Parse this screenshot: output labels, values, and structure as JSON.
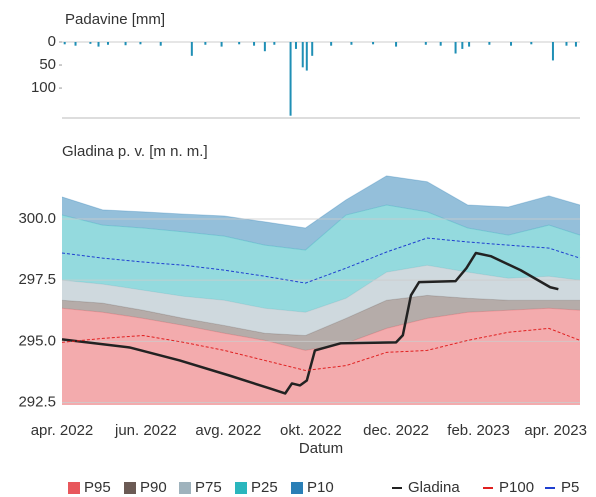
{
  "chart_data": [
    {
      "type": "bar",
      "title": "Padavine [mm]",
      "color": "#1f8fb5",
      "y_inverted": true,
      "grid": false,
      "xlim": [
        0,
        383
      ],
      "ylim": [
        0,
        165
      ],
      "yticks": [
        0,
        50,
        100
      ],
      "x": [
        2,
        10,
        21,
        27,
        34,
        47,
        58,
        73,
        96,
        106,
        118,
        131,
        142,
        150,
        157,
        169,
        173,
        178,
        181,
        185,
        199,
        214,
        230,
        247,
        269,
        280,
        291,
        296,
        301,
        316,
        332,
        347,
        363,
        373,
        380
      ],
      "values": [
        5,
        8,
        4,
        10,
        6,
        7,
        5,
        8,
        30,
        6,
        10,
        5,
        8,
        20,
        6,
        160,
        15,
        55,
        62,
        30,
        8,
        6,
        5,
        10,
        6,
        8,
        25,
        15,
        10,
        6,
        8,
        5,
        40,
        8,
        10
      ]
    },
    {
      "type": "area",
      "title": "Gladina p. v. [m n. m.]",
      "x_label": "Datum",
      "grid": true,
      "xlim": [
        0,
        383
      ],
      "ylim": [
        292.4,
        302
      ],
      "yticks": [
        {
          "value": 292.5,
          "label": "292.5"
        },
        {
          "value": 295,
          "label": "295.0"
        },
        297.5,
        {
          "value": 300,
          "label": "300.0"
        }
      ],
      "xticks": [
        {
          "value": 0,
          "label": "apr. 2022"
        },
        {
          "value": 62,
          "label": "jun. 2022"
        },
        {
          "value": 123,
          "label": "avg. 2022"
        },
        {
          "value": 184,
          "label": "okt. 2022"
        },
        {
          "value": 247,
          "label": "dec. 2022"
        },
        {
          "value": 308,
          "label": "feb. 2023"
        },
        {
          "value": 365,
          "label": "apr. 2023"
        }
      ],
      "x": [
        0,
        30,
        60,
        90,
        120,
        150,
        180,
        210,
        240,
        270,
        300,
        330,
        360,
        383
      ],
      "series": [
        {
          "name": "P95",
          "color": "#e8575c",
          "style": "band",
          "values": [
            296.35,
            296.19,
            295.94,
            295.65,
            295.33,
            295.04,
            294.63,
            294.92,
            295.53,
            295.94,
            296.19,
            296.27,
            296.35,
            296.27
          ]
        },
        {
          "name": "P90",
          "color": "#6b5a54",
          "style": "band",
          "values": [
            296.68,
            296.56,
            296.27,
            295.94,
            295.65,
            295.33,
            295.24,
            295.94,
            296.68,
            296.88,
            296.76,
            296.68,
            296.68,
            296.68
          ]
        },
        {
          "name": "P75",
          "color": "#9fb3bd",
          "style": "band",
          "values": [
            297.5,
            297.34,
            297.09,
            296.84,
            296.68,
            296.35,
            296.19,
            296.76,
            297.83,
            298.11,
            297.83,
            297.58,
            297.66,
            297.5
          ]
        },
        {
          "name": "P25",
          "color": "#2ab6bd",
          "style": "band",
          "values": [
            300.16,
            299.75,
            299.63,
            299.47,
            299.3,
            298.93,
            298.73,
            300.16,
            300.57,
            300.29,
            299.63,
            299.34,
            299.75,
            299.34
          ]
        },
        {
          "name": "P10",
          "color": "#2a7fb6",
          "style": "band",
          "values": [
            300.9,
            300.37,
            300.29,
            300.2,
            300.12,
            299.88,
            299.63,
            300.78,
            301.76,
            301.52,
            300.57,
            300.49,
            300.94,
            300.57
          ]
        },
        {
          "name": "Gladina",
          "color": "#222222",
          "style": "solid",
          "x": [
            0,
            50,
            87,
            124,
            154,
            165,
            170,
            176,
            181,
            187,
            206,
            247,
            252,
            258,
            264,
            291,
            299,
            306,
            317,
            339,
            361,
            367
          ],
          "values": [
            295.08,
            294.75,
            294.22,
            293.6,
            293.07,
            292.87,
            293.28,
            293.2,
            293.4,
            294.63,
            294.92,
            294.96,
            295.25,
            296.88,
            297.42,
            297.46,
            297.99,
            298.61,
            298.48,
            297.91,
            297.21,
            297.13
          ]
        },
        {
          "name": "P100",
          "color": "#e02020",
          "style": "dashed",
          "values": [
            294.96,
            295.12,
            295.24,
            294.96,
            294.63,
            294.22,
            293.81,
            294.01,
            294.55,
            294.63,
            295.04,
            295.37,
            295.53,
            295.04
          ]
        },
        {
          "name": "P5",
          "color": "#1f3fd0",
          "style": "dashed",
          "values": [
            298.61,
            298.4,
            298.24,
            298.11,
            297.91,
            297.66,
            297.38,
            297.99,
            298.65,
            299.22,
            299.06,
            298.93,
            298.81,
            298.4
          ]
        }
      ]
    }
  ]
}
